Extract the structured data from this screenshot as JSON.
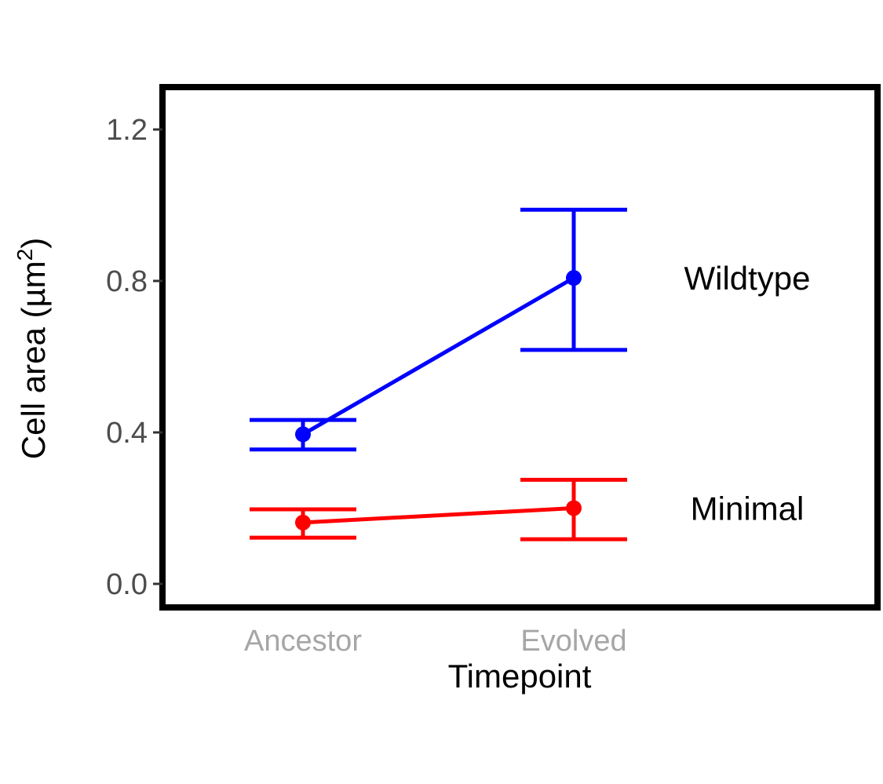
{
  "chart_data": {
    "type": "line",
    "title": "",
    "xlabel": "Timepoint",
    "ylabel_main": "Cell area (µm",
    "ylabel_sup": "2",
    "ylabel_close": ")",
    "ylim": [
      -0.06,
      1.3
    ],
    "yticks": [
      0.0,
      0.4,
      0.8,
      1.2
    ],
    "ytick_labels": [
      "0.0",
      "0.4",
      "0.8",
      "1.2"
    ],
    "categories": [
      "Ancestor",
      "Evolved"
    ],
    "grid": false,
    "legend": "none (direct labels at right)",
    "series": [
      {
        "name": "Wildtype",
        "color": "#0000ff",
        "values": [
          0.395,
          0.808
        ],
        "error_low": [
          0.355,
          0.618
        ],
        "error_high": [
          0.433,
          0.988
        ]
      },
      {
        "name": "Minimal",
        "color": "#ff0000",
        "values": [
          0.162,
          0.2
        ],
        "error_low": [
          0.122,
          0.118
        ],
        "error_high": [
          0.197,
          0.275
        ]
      }
    ]
  }
}
